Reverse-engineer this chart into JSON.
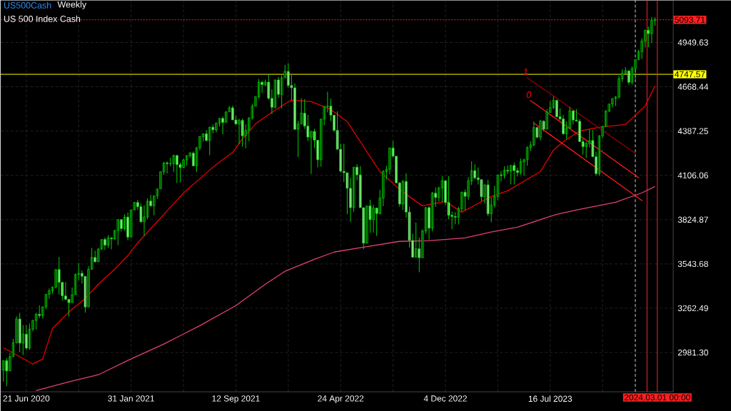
{
  "chart_data": {
    "type": "candlestick",
    "title": "US500Cash",
    "subtitle": "Weekly",
    "color": "#00d000",
    "annotations": [
      "US 500 Index Cash",
      {
        "text": "1",
        "x": "2023-05-27",
        "y": 4728
      },
      {
        "text": "0",
        "x": "2023-06-03",
        "y": 4583
      }
    ],
    "x": [
      "2020-05-03",
      "2020-05-10",
      "2020-05-17",
      "2020-05-24",
      "2020-05-31",
      "2020-06-07",
      "2020-06-14",
      "2020-06-21",
      "2020-06-28",
      "2020-07-05",
      "2020-07-12",
      "2020-07-19",
      "2020-07-26",
      "2020-08-02",
      "2020-08-09",
      "2020-08-16",
      "2020-08-23",
      "2020-08-30",
      "2020-09-06",
      "2020-09-13",
      "2020-09-20",
      "2020-09-27",
      "2020-10-04",
      "2020-10-11",
      "2020-10-18",
      "2020-10-25",
      "2020-11-01",
      "2020-11-08",
      "2020-11-15",
      "2020-11-22",
      "2020-11-29",
      "2020-12-06",
      "2020-12-13",
      "2020-12-20",
      "2020-12-27",
      "2021-01-03",
      "2021-01-10",
      "2021-01-17",
      "2021-01-24",
      "2021-01-31",
      "2021-02-07",
      "2021-02-14",
      "2021-02-21",
      "2021-02-28",
      "2021-03-07",
      "2021-03-14",
      "2021-03-21",
      "2021-03-28",
      "2021-04-04",
      "2021-04-11",
      "2021-04-18",
      "2021-04-25",
      "2021-05-02",
      "2021-05-09",
      "2021-05-16",
      "2021-05-23",
      "2021-05-30",
      "2021-06-06",
      "2021-06-13",
      "2021-06-20",
      "2021-06-27",
      "2021-07-04",
      "2021-07-11",
      "2021-07-18",
      "2021-07-25",
      "2021-08-01",
      "2021-08-08",
      "2021-08-15",
      "2021-08-22",
      "2021-08-29",
      "2021-09-05",
      "2021-09-12",
      "2021-09-19",
      "2021-09-26",
      "2021-10-03",
      "2021-10-10",
      "2021-10-17",
      "2021-10-24",
      "2021-10-31",
      "2021-11-07",
      "2021-11-14",
      "2021-11-21",
      "2021-11-28",
      "2021-12-05",
      "2021-12-12",
      "2021-12-19",
      "2021-12-26",
      "2022-01-02",
      "2022-01-09",
      "2022-01-16",
      "2022-01-23",
      "2022-01-30",
      "2022-02-06",
      "2022-02-13",
      "2022-02-20",
      "2022-02-27",
      "2022-03-06",
      "2022-03-13",
      "2022-03-20",
      "2022-03-27",
      "2022-04-03",
      "2022-04-10",
      "2022-04-17",
      "2022-04-24",
      "2022-05-01",
      "2022-05-08",
      "2022-05-15",
      "2022-05-22",
      "2022-05-29",
      "2022-06-05",
      "2022-06-12",
      "2022-06-19",
      "2022-06-26",
      "2022-07-03",
      "2022-07-10",
      "2022-07-17",
      "2022-07-24",
      "2022-07-31",
      "2022-08-07",
      "2022-08-14",
      "2022-08-21",
      "2022-08-28",
      "2022-09-04",
      "2022-09-11",
      "2022-09-18",
      "2022-09-25",
      "2022-10-02",
      "2022-10-09",
      "2022-10-16",
      "2022-10-23",
      "2022-10-30",
      "2022-11-06",
      "2022-11-13",
      "2022-11-20",
      "2022-11-27",
      "2022-12-04",
      "2022-12-11",
      "2022-12-18",
      "2022-12-25",
      "2023-01-01",
      "2023-01-08",
      "2023-01-15",
      "2023-01-22",
      "2023-01-29",
      "2023-02-05",
      "2023-02-12",
      "2023-02-19",
      "2023-02-26",
      "2023-03-05",
      "2023-03-12",
      "2023-03-19",
      "2023-03-26",
      "2023-04-02",
      "2023-04-09",
      "2023-04-16",
      "2023-04-23",
      "2023-04-30",
      "2023-05-07",
      "2023-05-14",
      "2023-05-21",
      "2023-05-28",
      "2023-06-04",
      "2023-06-11",
      "2023-06-18",
      "2023-06-25",
      "2023-07-02",
      "2023-07-09",
      "2023-07-16",
      "2023-07-23",
      "2023-07-30",
      "2023-08-06",
      "2023-08-13",
      "2023-08-20",
      "2023-08-27",
      "2023-09-03",
      "2023-09-10",
      "2023-09-17",
      "2023-09-24",
      "2023-10-01",
      "2023-10-08",
      "2023-10-15",
      "2023-10-22",
      "2023-10-29",
      "2023-11-05",
      "2023-11-12",
      "2023-11-19",
      "2023-11-26",
      "2023-12-03",
      "2023-12-10",
      "2023-12-17",
      "2023-12-24",
      "2023-12-31",
      "2024-01-07",
      "2024-01-14",
      "2024-01-21",
      "2024-01-28",
      "2024-02-04",
      "2024-02-11",
      "2024-02-18",
      "2024-02-25"
    ],
    "ohlc": [
      [
        2869,
        2931,
        2797,
        2930
      ],
      [
        2930,
        2945,
        2767,
        2864
      ],
      [
        2864,
        2980,
        2864,
        2955
      ],
      [
        2955,
        3068,
        2955,
        3044
      ],
      [
        3044,
        3211,
        3038,
        3194
      ],
      [
        3194,
        3233,
        2984,
        3041
      ],
      [
        3041,
        3156,
        2965,
        3098
      ],
      [
        3098,
        3155,
        3000,
        3009
      ],
      [
        3009,
        3165,
        2999,
        3130
      ],
      [
        3130,
        3188,
        3115,
        3185
      ],
      [
        3185,
        3233,
        3127,
        3224
      ],
      [
        3224,
        3280,
        3200,
        3216
      ],
      [
        3216,
        3272,
        3197,
        3271
      ],
      [
        3271,
        3352,
        3256,
        3351
      ],
      [
        3351,
        3388,
        3324,
        3373
      ],
      [
        3373,
        3399,
        3354,
        3397
      ],
      [
        3397,
        3509,
        3387,
        3508
      ],
      [
        3508,
        3588,
        3349,
        3427
      ],
      [
        3427,
        3427,
        3310,
        3341
      ],
      [
        3341,
        3428,
        3314,
        3319
      ],
      [
        3319,
        3320,
        3209,
        3298
      ],
      [
        3298,
        3394,
        3298,
        3348
      ],
      [
        3348,
        3483,
        3348,
        3477
      ],
      [
        3477,
        3550,
        3441,
        3484
      ],
      [
        3484,
        3502,
        3419,
        3465
      ],
      [
        3465,
        3465,
        3234,
        3270
      ],
      [
        3270,
        3529,
        3270,
        3509
      ],
      [
        3509,
        3645,
        3509,
        3585
      ],
      [
        3585,
        3628,
        3552,
        3557
      ],
      [
        3557,
        3644,
        3557,
        3638
      ],
      [
        3638,
        3699,
        3633,
        3699
      ],
      [
        3699,
        3712,
        3633,
        3663
      ],
      [
        3663,
        3726,
        3645,
        3709
      ],
      [
        3709,
        3712,
        3636,
        3703
      ],
      [
        3703,
        3760,
        3697,
        3756
      ],
      [
        3756,
        3827,
        3663,
        3825
      ],
      [
        3825,
        3825,
        3749,
        3768
      ],
      [
        3768,
        3859,
        3754,
        3841
      ],
      [
        3841,
        3870,
        3694,
        3714
      ],
      [
        3714,
        3887,
        3714,
        3887
      ],
      [
        3887,
        3937,
        3885,
        3934
      ],
      [
        3934,
        3950,
        3885,
        3907
      ],
      [
        3907,
        3928,
        3805,
        3811
      ],
      [
        3811,
        3915,
        3723,
        3842
      ],
      [
        3842,
        3960,
        3829,
        3943
      ],
      [
        3943,
        3983,
        3906,
        3913
      ],
      [
        3913,
        3978,
        3853,
        3975
      ],
      [
        3975,
        4020,
        3955,
        4020
      ],
      [
        4020,
        4129,
        4020,
        4129
      ],
      [
        4129,
        4191,
        4109,
        4185
      ],
      [
        4185,
        4194,
        4118,
        4180
      ],
      [
        4180,
        4218,
        4164,
        4181
      ],
      [
        4181,
        4238,
        4128,
        4232
      ],
      [
        4232,
        4237,
        4057,
        4174
      ],
      [
        4174,
        4188,
        4061,
        4156
      ],
      [
        4156,
        4213,
        4150,
        4204
      ],
      [
        4204,
        4234,
        4167,
        4230
      ],
      [
        4230,
        4255,
        4217,
        4247
      ],
      [
        4247,
        4257,
        4164,
        4166
      ],
      [
        4166,
        4287,
        4127,
        4281
      ],
      [
        4281,
        4356,
        4265,
        4352
      ],
      [
        4352,
        4372,
        4321,
        4370
      ],
      [
        4370,
        4393,
        4321,
        4327
      ],
      [
        4327,
        4415,
        4233,
        4412
      ],
      [
        4412,
        4429,
        4372,
        4395
      ],
      [
        4395,
        4442,
        4379,
        4437
      ],
      [
        4437,
        4469,
        4416,
        4468
      ],
      [
        4468,
        4480,
        4367,
        4442
      ],
      [
        4442,
        4513,
        4442,
        4509
      ],
      [
        4509,
        4546,
        4509,
        4535
      ],
      [
        4535,
        4549,
        4457,
        4458
      ],
      [
        4458,
        4486,
        4427,
        4432
      ],
      [
        4432,
        4465,
        4305,
        4455
      ],
      [
        4455,
        4466,
        4288,
        4357
      ],
      [
        4357,
        4429,
        4278,
        4391
      ],
      [
        4391,
        4475,
        4322,
        4471
      ],
      [
        4471,
        4559,
        4459,
        4545
      ],
      [
        4545,
        4608,
        4545,
        4605
      ],
      [
        4605,
        4718,
        4595,
        4697
      ],
      [
        4697,
        4707,
        4630,
        4682
      ],
      [
        4682,
        4714,
        4671,
        4698
      ],
      [
        4698,
        4744,
        4586,
        4595
      ],
      [
        4595,
        4652,
        4495,
        4538
      ],
      [
        4538,
        4713,
        4532,
        4712
      ],
      [
        4712,
        4731,
        4600,
        4620
      ],
      [
        4620,
        4741,
        4531,
        4725
      ],
      [
        4725,
        4808,
        4725,
        4766
      ],
      [
        4766,
        4818,
        4662,
        4677
      ],
      [
        4677,
        4749,
        4582,
        4662
      ],
      [
        4662,
        4690,
        4395,
        4398
      ],
      [
        4398,
        4453,
        4222,
        4432
      ],
      [
        4432,
        4595,
        4432,
        4501
      ],
      [
        4501,
        4590,
        4401,
        4419
      ],
      [
        4419,
        4490,
        4324,
        4349
      ],
      [
        4349,
        4385,
        4115,
        4385
      ],
      [
        4385,
        4402,
        4279,
        4329
      ],
      [
        4329,
        4329,
        4157,
        4205
      ],
      [
        4205,
        4465,
        4161,
        4463
      ],
      [
        4463,
        4546,
        4424,
        4543
      ],
      [
        4543,
        4637,
        4506,
        4546
      ],
      [
        4546,
        4593,
        4450,
        4488
      ],
      [
        4488,
        4488,
        4381,
        4392
      ],
      [
        4392,
        4513,
        4267,
        4272
      ],
      [
        4272,
        4308,
        4124,
        4132
      ],
      [
        4132,
        4307,
        4063,
        4123
      ],
      [
        4123,
        4123,
        3859,
        4024
      ],
      [
        4024,
        4091,
        3810,
        3901
      ],
      [
        3901,
        4158,
        3875,
        4158
      ],
      [
        4158,
        4177,
        4074,
        4109
      ],
      [
        4109,
        4165,
        3900,
        3901
      ],
      [
        3901,
        3901,
        3637,
        3675
      ],
      [
        3675,
        3913,
        3675,
        3912
      ],
      [
        3912,
        3951,
        3741,
        3825
      ],
      [
        3825,
        3919,
        3743,
        3899
      ],
      [
        3899,
        3899,
        3722,
        3863
      ],
      [
        3863,
        4013,
        3858,
        3962
      ],
      [
        3962,
        4140,
        3910,
        4130
      ],
      [
        4130,
        4167,
        4080,
        4145
      ],
      [
        4145,
        4281,
        4112,
        4280
      ],
      [
        4280,
        4325,
        4218,
        4228
      ],
      [
        4228,
        4228,
        4057,
        4058
      ],
      [
        4058,
        4062,
        3907,
        3924
      ],
      [
        3924,
        4077,
        3886,
        4067
      ],
      [
        4067,
        4119,
        3838,
        3873
      ],
      [
        3873,
        3907,
        3647,
        3693
      ],
      [
        3693,
        3736,
        3584,
        3586
      ],
      [
        3586,
        3807,
        3584,
        3640
      ],
      [
        3640,
        3712,
        3491,
        3583
      ],
      [
        3583,
        3762,
        3583,
        3753
      ],
      [
        3753,
        3905,
        3735,
        3901
      ],
      [
        3901,
        3911,
        3698,
        3771
      ],
      [
        3771,
        4001,
        3751,
        3993
      ],
      [
        3993,
        4029,
        3906,
        3965
      ],
      [
        3965,
        4034,
        3939,
        4026
      ],
      [
        4026,
        4101,
        3937,
        4072
      ],
      [
        4072,
        4072,
        3918,
        3934
      ],
      [
        3934,
        4101,
        3827,
        3852
      ],
      [
        3852,
        3876,
        3764,
        3845
      ],
      [
        3845,
        3873,
        3796,
        3840
      ],
      [
        3840,
        3906,
        3794,
        3895
      ],
      [
        3895,
        4003,
        3877,
        3999
      ],
      [
        3999,
        4016,
        3885,
        3973
      ],
      [
        3973,
        4095,
        3950,
        4071
      ],
      [
        4071,
        4195,
        4045,
        4136
      ],
      [
        4136,
        4176,
        4080,
        4090
      ],
      [
        4090,
        4156,
        4048,
        4079
      ],
      [
        4079,
        4082,
        3943,
        3970
      ],
      [
        3970,
        4049,
        3928,
        4046
      ],
      [
        4046,
        4078,
        3847,
        3862
      ],
      [
        3862,
        3964,
        3808,
        3917
      ],
      [
        3917,
        4039,
        3903,
        3971
      ],
      [
        3971,
        4110,
        3949,
        4109
      ],
      [
        4109,
        4133,
        4069,
        4105
      ],
      [
        4105,
        4163,
        4086,
        4138
      ],
      [
        4138,
        4170,
        4114,
        4133
      ],
      [
        4133,
        4170,
        4049,
        4169
      ],
      [
        4169,
        4187,
        4048,
        4136
      ],
      [
        4136,
        4155,
        4099,
        4124
      ],
      [
        4124,
        4213,
        4110,
        4192
      ],
      [
        4192,
        4212,
        4103,
        4205
      ],
      [
        4205,
        4290,
        4167,
        4282
      ],
      [
        4282,
        4322,
        4260,
        4299
      ],
      [
        4299,
        4448,
        4290,
        4410
      ],
      [
        4410,
        4410,
        4341,
        4348
      ],
      [
        4348,
        4458,
        4328,
        4450
      ],
      [
        4450,
        4456,
        4385,
        4399
      ],
      [
        4399,
        4527,
        4398,
        4505
      ],
      [
        4505,
        4578,
        4503,
        4536
      ],
      [
        4536,
        4607,
        4527,
        4582
      ],
      [
        4582,
        4584,
        4474,
        4478
      ],
      [
        4478,
        4531,
        4456,
        4464
      ],
      [
        4464,
        4490,
        4364,
        4370
      ],
      [
        4370,
        4448,
        4335,
        4406
      ],
      [
        4406,
        4541,
        4403,
        4516
      ],
      [
        4516,
        4516,
        4430,
        4457
      ],
      [
        4457,
        4527,
        4448,
        4450
      ],
      [
        4450,
        4464,
        4317,
        4320
      ],
      [
        4320,
        4338,
        4238,
        4288
      ],
      [
        4288,
        4319,
        4216,
        4308
      ],
      [
        4308,
        4398,
        4283,
        4327
      ],
      [
        4327,
        4394,
        4223,
        4224
      ],
      [
        4224,
        4256,
        4104,
        4117
      ],
      [
        4117,
        4359,
        4103,
        4358
      ],
      [
        4358,
        4421,
        4342,
        4415
      ],
      [
        4415,
        4521,
        4412,
        4514
      ],
      [
        4514,
        4560,
        4507,
        4559
      ],
      [
        4559,
        4595,
        4537,
        4594
      ],
      [
        4594,
        4609,
        4546,
        4604
      ],
      [
        4604,
        4739,
        4593,
        4719
      ],
      [
        4719,
        4779,
        4699,
        4755
      ],
      [
        4755,
        4793,
        4751,
        4770
      ],
      [
        4770,
        4770,
        4682,
        4697
      ],
      [
        4697,
        4798,
        4682,
        4784
      ],
      [
        4784,
        4842,
        4714,
        4840
      ],
      [
        4840,
        4903,
        4840,
        4891
      ],
      [
        4891,
        4976,
        4845,
        4959
      ],
      [
        4959,
        5030,
        4918,
        5027
      ],
      [
        5027,
        5049,
        4920,
        5006
      ],
      [
        5006,
        5111,
        4946,
        5089
      ],
      [
        5089,
        5110,
        5057,
        5094
      ]
    ],
    "series": [
      {
        "type": "line",
        "color": "#e60000",
        "x": [
          "2020-05-03",
          "2020-07-05",
          "2020-07-26",
          "2020-08-16",
          "2020-09-20",
          "2020-10-25",
          "2020-11-22",
          "2020-12-27",
          "2021-01-24",
          "2021-02-14",
          "2021-04-11",
          "2021-05-23",
          "2021-06-27",
          "2021-08-01",
          "2021-09-05",
          "2021-09-26",
          "2021-10-24",
          "2021-11-21",
          "2021-12-26",
          "2022-01-09",
          "2022-02-20",
          "2022-04-03",
          "2022-05-08",
          "2022-06-12",
          "2022-07-17",
          "2022-08-28",
          "2022-10-02",
          "2022-10-16",
          "2022-12-04",
          "2023-01-08",
          "2023-02-05",
          "2023-03-12",
          "2023-04-16",
          "2023-06-25",
          "2023-07-23",
          "2023-08-13",
          "2023-09-17",
          "2023-10-29",
          "2023-12-24",
          "2024-02-04",
          "2024-02-25"
        ],
        "values": [
          3012,
          2908,
          2940,
          3134,
          3238,
          3324,
          3415,
          3510,
          3596,
          3677,
          3858,
          3994,
          4085,
          4175,
          4252,
          4338,
          4433,
          4492,
          4560,
          4583,
          4574,
          4524,
          4447,
          4288,
          4130,
          4017,
          3940,
          3913,
          3940,
          3872,
          3917,
          3972,
          4008,
          4130,
          4266,
          4320,
          4388,
          4411,
          4429,
          4547,
          4674
        ]
      },
      {
        "type": "line",
        "color": "#e0407a",
        "x": [
          "2020-07-12",
          "2020-09-20",
          "2020-11-22",
          "2021-01-24",
          "2021-04-11",
          "2021-06-27",
          "2021-09-12",
          "2021-11-14",
          "2021-12-26",
          "2022-02-27",
          "2022-04-10",
          "2022-06-12",
          "2022-08-28",
          "2022-10-30",
          "2023-01-15",
          "2023-03-12",
          "2023-05-07",
          "2023-07-30",
          "2023-09-17",
          "2023-12-03",
          "2024-01-28",
          "2024-02-25"
        ],
        "values": [
          2740,
          2795,
          2840,
          2931,
          3035,
          3152,
          3279,
          3415,
          3497,
          3573,
          3619,
          3650,
          3687,
          3691,
          3709,
          3746,
          3777,
          3859,
          3890,
          3936,
          3995,
          4035
        ]
      },
      {
        "type": "line",
        "color": "#9a0000",
        "x": [
          "2023-05-27",
          "2024-01-15"
        ],
        "values": [
          4728,
          4243
        ]
      },
      {
        "type": "line",
        "color": "#ff1a1a",
        "x": [
          "2023-06-03",
          "2024-01-22"
        ],
        "values": [
          4583,
          4089
        ]
      },
      {
        "type": "line",
        "color": "#ff1a1a",
        "x": [
          "2023-06-11",
          "2024-01-29"
        ],
        "values": [
          4438,
          3944
        ]
      }
    ],
    "xlim": [
      "2020-04-27",
      "2024-04-04"
    ],
    "xticks": [
      {
        "value": "2020-06-21",
        "label": "21 Jun 2020"
      },
      {
        "value": "2020-10-11",
        "label": null
      },
      {
        "value": "2021-01-31",
        "label": "31 Jan 2021"
      },
      {
        "value": "2021-05-23",
        "label": null
      },
      {
        "value": "2021-09-12",
        "label": "12 Sep 2021"
      },
      {
        "value": "2022-01-02",
        "label": null
      },
      {
        "value": "2022-04-24",
        "label": "24 Apr 2022"
      },
      {
        "value": "2022-08-14",
        "label": null
      },
      {
        "value": "2022-12-04",
        "label": "4 Dec 2022"
      },
      {
        "value": "2023-03-26",
        "label": null
      },
      {
        "value": "2023-07-16",
        "label": "16 Jul 2023"
      },
      {
        "value": "2023-11-05",
        "label": null
      }
    ],
    "ylim": [
      2732,
      5217
    ],
    "yticks": [
      {
        "value": 2981.3,
        "label": "2981.30"
      },
      3262.49,
      3543.68,
      3824.87,
      4106.06,
      4387.25,
      4668.44,
      4949.63
    ],
    "grid": true,
    "ref_lines": [
      {
        "axis": "y",
        "value": 4747.57,
        "label": "4747.57",
        "color": "#ffff00",
        "line_style": "solid"
      },
      {
        "axis": "y",
        "value": 5093.71,
        "label": "5093.71",
        "color": "#ff2020",
        "line_style": "dotted"
      },
      {
        "axis": "x",
        "value": "2024-01-14",
        "color": "#d0d0d0",
        "line_style": "dashed"
      },
      {
        "axis": "x",
        "value": "2024-02-08",
        "color": "#ff2020",
        "line_style": "solid"
      },
      {
        "axis": "x",
        "value": "2024-03-01",
        "label": "2024.03.01 00:00",
        "color": "#ff2020",
        "line_style": "solid"
      }
    ]
  }
}
